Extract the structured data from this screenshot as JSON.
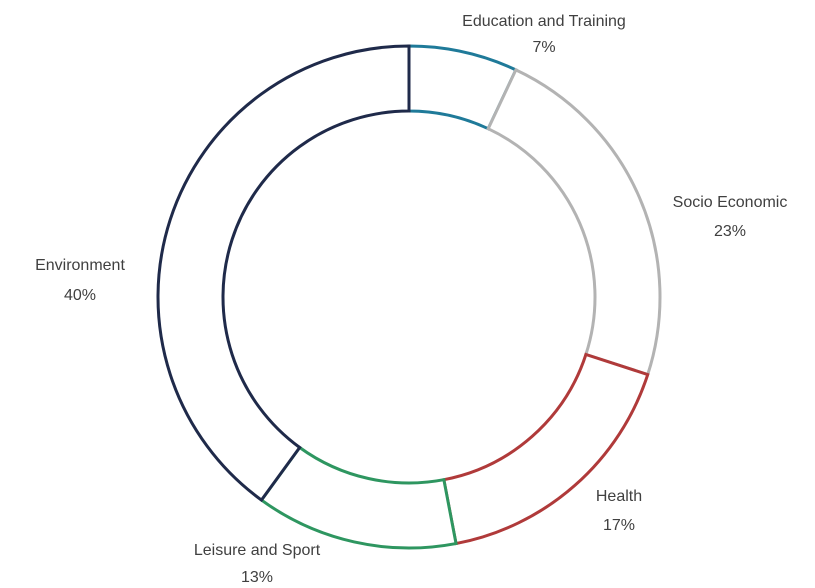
{
  "chart_data": {
    "type": "donut",
    "categories": [
      "Education and Training",
      "Socio Economic",
      "Health",
      "Leisure and Sport",
      "Environment"
    ],
    "values": [
      7,
      23,
      17,
      13,
      40
    ],
    "value_labels": [
      "7%",
      "23%",
      "17%",
      "13%",
      "40%"
    ],
    "colors": [
      "#1f7a99",
      "#b3b3b3",
      "#b03a3a",
      "#2e9660",
      "#1f2a4a"
    ]
  }
}
